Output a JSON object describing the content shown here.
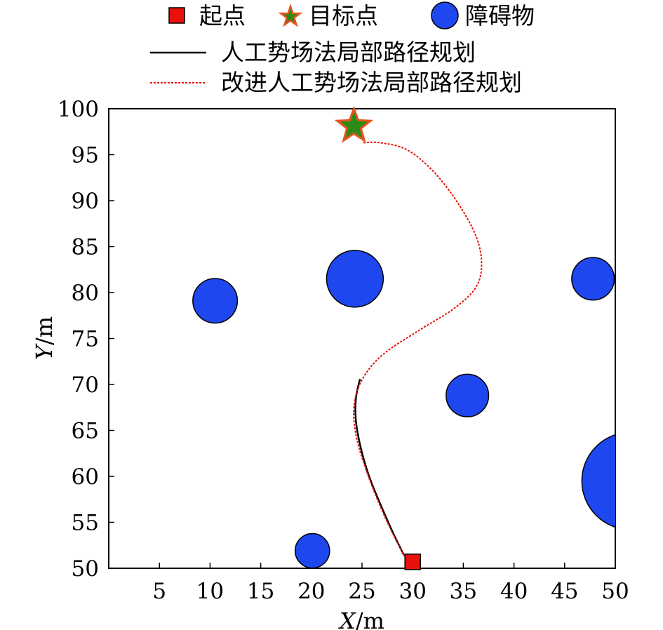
{
  "chart_data": {
    "type": "scatter",
    "xlabel": {
      "var": "X",
      "unit": "/m"
    },
    "ylabel": {
      "var": "Y",
      "unit": "/m"
    },
    "xlim": [
      0,
      50
    ],
    "ylim": [
      50,
      100
    ],
    "x_ticks": [
      5,
      10,
      15,
      20,
      25,
      30,
      35,
      40,
      45,
      50
    ],
    "y_ticks": [
      50,
      55,
      60,
      65,
      70,
      75,
      80,
      85,
      90,
      95,
      100
    ],
    "grid": false,
    "legend": {
      "placement": "top",
      "start_label": "起点",
      "goal_label": "目标点",
      "obstacle_label": "障碍物",
      "apf_label": "人工势场法局部路径规划",
      "improved_label": "改进人工势场法局部路径规划"
    },
    "start": {
      "x": 30,
      "y": 50.7
    },
    "goal": {
      "x": 24.2,
      "y": 98.1
    },
    "obstacles": [
      {
        "x": 10.5,
        "y": 79.1,
        "r": 2.2
      },
      {
        "x": 24.3,
        "y": 81.5,
        "r": 2.8
      },
      {
        "x": 47.8,
        "y": 81.5,
        "r": 2.1
      },
      {
        "x": 35.4,
        "y": 68.8,
        "r": 2.1
      },
      {
        "x": 20.1,
        "y": 51.9,
        "r": 1.7
      },
      {
        "x": 51.5,
        "y": 59.5,
        "r": 4.8
      }
    ],
    "series": [
      {
        "name": "人工势场法局部路径规划",
        "color": "#000000",
        "style": "solid",
        "points": [
          [
            29.1,
            51.5
          ],
          [
            28.0,
            54.0
          ],
          [
            26.8,
            57.0
          ],
          [
            25.7,
            60.0
          ],
          [
            24.9,
            63.0
          ],
          [
            24.4,
            66.0
          ],
          [
            24.4,
            68.5
          ],
          [
            24.8,
            70.6
          ]
        ]
      },
      {
        "name": "改进人工势场法局部路径规划",
        "color": "#e8120c",
        "style": "dotted",
        "points": [
          [
            29.2,
            51.3
          ],
          [
            27.5,
            55.0
          ],
          [
            25.8,
            59.5
          ],
          [
            24.5,
            64.0
          ],
          [
            24.2,
            67.5
          ],
          [
            25.0,
            70.5
          ],
          [
            27.0,
            73.2
          ],
          [
            30.5,
            75.8
          ],
          [
            34.0,
            78.2
          ],
          [
            36.2,
            80.5
          ],
          [
            36.8,
            83.0
          ],
          [
            36.3,
            86.0
          ],
          [
            34.6,
            89.5
          ],
          [
            32.2,
            93.0
          ],
          [
            29.5,
            95.5
          ],
          [
            26.8,
            96.3
          ],
          [
            25.0,
            96.3
          ]
        ]
      }
    ]
  },
  "colors": {
    "obstacle_fill": "#1e47ef",
    "start_fill": "#e8120c",
    "goal_fill": "#2c8a16",
    "goal_stroke": "#e8531e"
  }
}
